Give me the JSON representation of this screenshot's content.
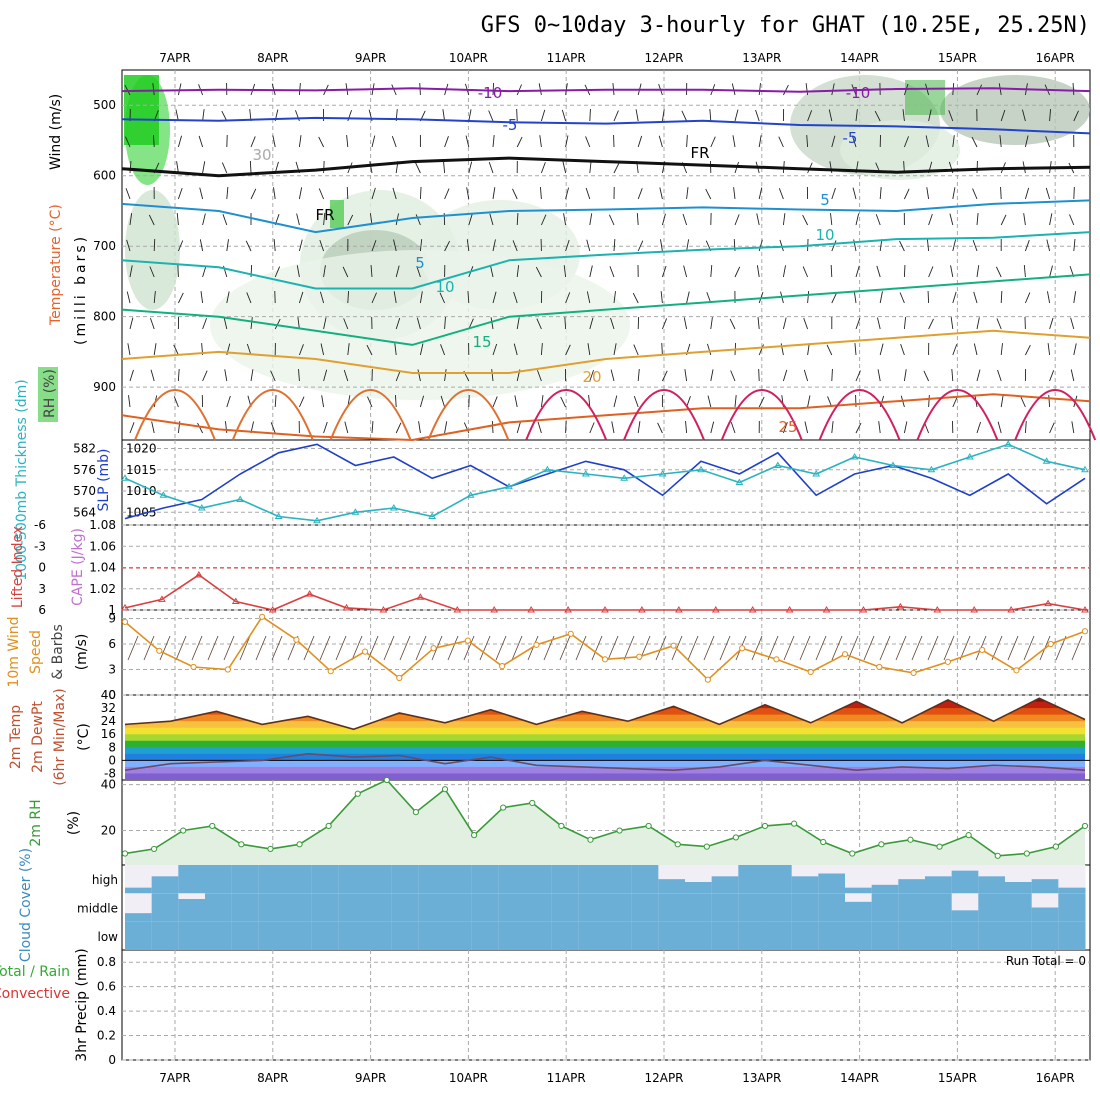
{
  "title": "GFS 0~10day 3-hourly for GHAT (10.25E, 25.25N)",
  "colors": {
    "wind_label": "#000000",
    "temp_label": "#e8622c",
    "temp_mark": "#7a2ea8",
    "rh_label": "#444444",
    "slp": "#1f3fc8",
    "thickness": "#2ab3c0",
    "li": "#d84040",
    "cape": "#c070d0",
    "wind10": "#e09020",
    "t2m_label": "#c05030",
    "rh2m": "#3a9a3a",
    "cloud": "#6baed6",
    "cloud_label": "#3a8ac0",
    "precip_total": "#33aa33",
    "precip_conv": "#dd3333"
  },
  "chart_data": [
    {
      "id": "upper-air",
      "type": "heatmap",
      "x_ticks": [
        "7APR",
        "8APR",
        "9APR",
        "10APR",
        "11APR",
        "12APR",
        "13APR",
        "14APR",
        "15APR",
        "16APR"
      ],
      "y_ticks": [
        "500",
        "600",
        "700",
        "800",
        "900"
      ],
      "ylim": [
        450,
        975
      ],
      "ylabel_parts": [
        "Wind (m/s)",
        "Temperature (°C)",
        "(milli bars)",
        "RH (%)"
      ],
      "isotherm_labels": [
        "-10",
        "-10",
        "-5",
        "-5",
        "FR",
        "FR",
        "5",
        "10",
        "5",
        "10",
        "15",
        "20",
        "25",
        "30"
      ],
      "isotherms": [
        {
          "label": "-10",
          "p": [
            480,
            478,
            479,
            476,
            480,
            478,
            478,
            481,
            477,
            476,
            480
          ]
        },
        {
          "label": "-5",
          "p": [
            520,
            522,
            518,
            520,
            524,
            526,
            522,
            528,
            530,
            534,
            540
          ]
        },
        {
          "label": "0",
          "p": [
            590,
            600,
            592,
            580,
            575,
            580,
            585,
            590,
            595,
            590,
            588
          ]
        },
        {
          "label": "5",
          "p": [
            640,
            650,
            680,
            660,
            650,
            648,
            645,
            648,
            650,
            640,
            635
          ]
        },
        {
          "label": "10",
          "p": [
            720,
            730,
            760,
            760,
            720,
            712,
            705,
            700,
            690,
            688,
            680
          ]
        },
        {
          "label": "15",
          "p": [
            790,
            800,
            820,
            840,
            800,
            790,
            780,
            770,
            760,
            750,
            740
          ]
        },
        {
          "label": "20",
          "p": [
            860,
            850,
            860,
            880,
            880,
            860,
            850,
            840,
            830,
            820,
            830
          ]
        },
        {
          "label": "25",
          "p": [
            940,
            960,
            970,
            975,
            950,
            940,
            930,
            930,
            920,
            910,
            920
          ]
        }
      ]
    },
    {
      "id": "slp-thickness",
      "type": "line",
      "ylabel_left": "1000-500mb Thickness (dm)",
      "ylabel_right": "SLP (mb)",
      "left_ticks": [
        "582",
        "576",
        "570",
        "564"
      ],
      "right_ticks": [
        "1020",
        "1015",
        "1010",
        "1005"
      ],
      "ylim": [
        1002,
        1022
      ],
      "series": [
        {
          "name": "SLP (mb)",
          "values": [
            1003.5,
            1006,
            1008,
            1014,
            1019,
            1021,
            1016,
            1018,
            1013,
            1016,
            1011,
            1014,
            1017,
            1015,
            1009,
            1017,
            1014,
            1019,
            1009,
            1014,
            1016,
            1013,
            1009,
            1014,
            1007,
            1013
          ]
        },
        {
          "name": "Thickness",
          "values": [
            1013,
            1009,
            1006,
            1008,
            1004,
            1003,
            1005,
            1006,
            1004,
            1009,
            1011,
            1015,
            1014,
            1013,
            1014,
            1015,
            1012,
            1016,
            1014,
            1018,
            1016,
            1015,
            1018,
            1021,
            1017,
            1015
          ]
        }
      ]
    },
    {
      "id": "lifted-cape",
      "type": "line",
      "ylabel_left": "Lifted Index",
      "ylabel_right": "CAPE (J/kg)",
      "left_ticks": [
        "-6",
        "-3",
        "0",
        "3",
        "6"
      ],
      "right_ticks": [
        "1.08",
        "1.06",
        "1.04",
        "1.02",
        "1"
      ],
      "ylim": [
        1.0,
        1.08
      ],
      "series": [
        {
          "name": "CAPE",
          "values": [
            1.002,
            1.01,
            1.033,
            1.008,
            1.0,
            1.015,
            1.002,
            1.0,
            1.012,
            1.0,
            1.0,
            1.0,
            1.0,
            1.0,
            1.0,
            1.0,
            1.0,
            1.0,
            1.0,
            1.0,
            1.0,
            1.003,
            1.0,
            1.0,
            1.0,
            1.006,
            1.0
          ]
        }
      ]
    },
    {
      "id": "wind10m",
      "type": "line",
      "ylabel_parts": [
        "10m Wind",
        "Speed",
        "& Barbs",
        "(m/s)"
      ],
      "ticks": [
        "9",
        "6",
        "3",
        "0"
      ],
      "ylim": [
        0,
        10
      ],
      "series": [
        {
          "name": "10m Wind Speed",
          "values": [
            8.6,
            5.2,
            3.3,
            3.0,
            9.2,
            6.5,
            2.8,
            5.1,
            2.0,
            5.5,
            6.4,
            3.4,
            5.9,
            7.2,
            4.2,
            4.5,
            5.8,
            1.8,
            5.5,
            4.2,
            2.7,
            4.8,
            3.3,
            2.6,
            3.9,
            5.3,
            2.9,
            6.0,
            7.5
          ]
        }
      ]
    },
    {
      "id": "temp2m",
      "type": "area",
      "ylabel_parts": [
        "2m Temp",
        "2m DewPt",
        "(6hr Min/Max)",
        "(°C)"
      ],
      "ticks": [
        "40",
        "32",
        "24",
        "16",
        "8",
        "0",
        "-8"
      ],
      "ylim": [
        -12,
        40
      ],
      "series": [
        {
          "name": "2m Temp",
          "values": [
            22,
            24,
            30,
            22,
            27,
            19,
            29,
            23,
            31,
            22,
            30,
            24,
            33,
            22,
            34,
            23,
            36,
            23,
            37,
            24,
            38,
            25
          ]
        },
        {
          "name": "2m DewPt",
          "values": [
            -6,
            -2,
            -1,
            0,
            4,
            2,
            3,
            -2,
            2,
            -3,
            -4,
            -5,
            -6,
            -4,
            0,
            -3,
            -6,
            -4,
            -5,
            -3,
            -4,
            -6
          ]
        }
      ]
    },
    {
      "id": "rh2m",
      "type": "area",
      "ylabel_parts": [
        "2m RH",
        "(%)"
      ],
      "ticks": [
        "40",
        "20"
      ],
      "ylim": [
        5,
        42
      ],
      "series": [
        {
          "name": "2m RH",
          "values": [
            10,
            12,
            20,
            22,
            14,
            12,
            14,
            22,
            36,
            42,
            28,
            38,
            18,
            30,
            32,
            22,
            16,
            20,
            22,
            14,
            13,
            17,
            22,
            23,
            15,
            10,
            14,
            16,
            13,
            18,
            9,
            10,
            13,
            22
          ]
        }
      ]
    },
    {
      "id": "cloud",
      "type": "bar",
      "ylabel": "Cloud Cover (%)",
      "levels": [
        "high",
        "middle",
        "low"
      ],
      "series": [
        {
          "name": "high",
          "values": [
            0.2,
            0.6,
            1,
            1,
            1,
            1,
            1,
            1,
            1,
            1,
            1,
            1,
            1,
            1,
            1,
            1,
            1,
            1,
            1,
            1,
            0.5,
            0.4,
            0.6,
            1,
            1,
            0.6,
            0.7,
            0.2,
            0.3,
            0.5,
            0.6,
            0.8,
            0.6,
            0.4,
            0.5,
            0.2
          ]
        },
        {
          "name": "middle",
          "values": [
            0.3,
            1,
            0.8,
            1,
            1,
            1,
            1,
            1,
            1,
            1,
            1,
            1,
            1,
            1,
            1,
            1,
            1,
            1,
            1,
            1,
            1,
            1,
            1,
            1,
            1,
            1,
            1,
            0.7,
            1,
            1,
            1,
            0.4,
            1,
            1,
            0.5,
            1
          ]
        },
        {
          "name": "low",
          "values": [
            1,
            1,
            1,
            1,
            1,
            1,
            1,
            1,
            1,
            1,
            1,
            1,
            1,
            1,
            1,
            1,
            1,
            1,
            1,
            1,
            1,
            1,
            1,
            1,
            1,
            1,
            1,
            1,
            1,
            1,
            1,
            1,
            1,
            1,
            1,
            1
          ]
        }
      ]
    },
    {
      "id": "precip",
      "type": "bar",
      "ylabel": "3hr Precip (mm)",
      "legend_total": "Total / Rain",
      "legend_conv": "Convective",
      "run_total": "Run Total = 0",
      "ticks": [
        "0.8",
        "0.6",
        "0.4",
        "0.2",
        "0"
      ],
      "ylim": [
        0,
        0.9
      ],
      "values": []
    }
  ]
}
